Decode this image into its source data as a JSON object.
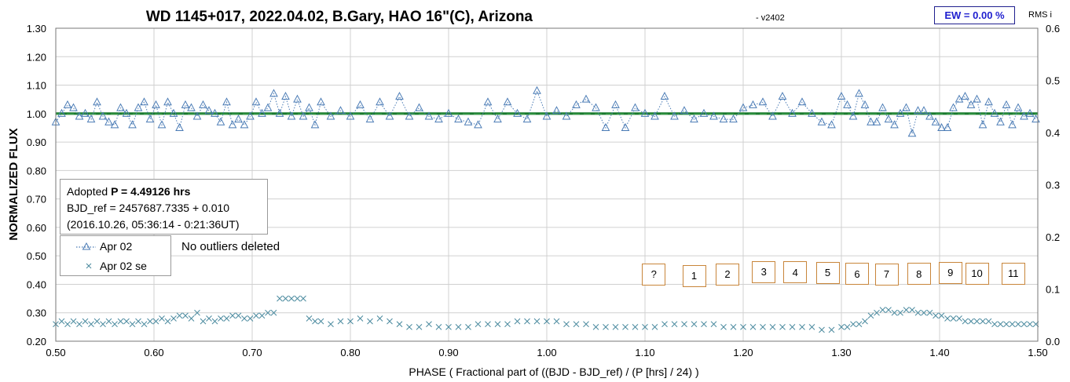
{
  "chart_data": {
    "type": "scatter",
    "title": "WD 1145+017, 2022.04.02, B.Gary, HAO 16\"(C), Arizona",
    "version": "-  v2402",
    "xlabel": "PHASE ( Fractional part of ((BJD - BJD_ref) / (P [hrs] / 24) )",
    "ylabel": "NORMALIZED FLUX",
    "y2label": "RMS i",
    "xlim": [
      0.5,
      1.5
    ],
    "ylim": [
      0.2,
      1.3
    ],
    "y2lim": [
      0.0,
      0.6
    ],
    "x_ticks": [
      "0.50",
      "0.60",
      "0.70",
      "0.80",
      "0.90",
      "1.00",
      "1.10",
      "1.20",
      "1.30",
      "1.40",
      "1.50"
    ],
    "y_ticks": [
      "0.20",
      "0.30",
      "0.40",
      "0.50",
      "0.60",
      "0.70",
      "0.80",
      "0.90",
      "1.00",
      "1.10",
      "1.20",
      "1.30"
    ],
    "y2_ticks": [
      "0.0",
      "0.1",
      "0.2",
      "0.3",
      "0.4",
      "0.5",
      "0.6"
    ],
    "grid": true,
    "reference_line": 1.0,
    "series": [
      {
        "name": "Apr 02",
        "marker": "triangle",
        "color": "#4a7bb5",
        "line": "dotted",
        "x": [
          0.5,
          0.506,
          0.512,
          0.518,
          0.524,
          0.53,
          0.536,
          0.542,
          0.548,
          0.554,
          0.56,
          0.566,
          0.572,
          0.578,
          0.584,
          0.59,
          0.596,
          0.602,
          0.608,
          0.614,
          0.62,
          0.626,
          0.632,
          0.638,
          0.644,
          0.65,
          0.656,
          0.662,
          0.668,
          0.674,
          0.68,
          0.686,
          0.692,
          0.698,
          0.704,
          0.71,
          0.716,
          0.722,
          0.728,
          0.734,
          0.74,
          0.746,
          0.752,
          0.758,
          0.764,
          0.77,
          0.78,
          0.79,
          0.8,
          0.81,
          0.82,
          0.83,
          0.84,
          0.85,
          0.86,
          0.87,
          0.88,
          0.89,
          0.9,
          0.91,
          0.92,
          0.93,
          0.94,
          0.95,
          0.96,
          0.97,
          0.98,
          0.99,
          1.0,
          1.01,
          1.02,
          1.03,
          1.04,
          1.05,
          1.06,
          1.07,
          1.08,
          1.09,
          1.1,
          1.11,
          1.12,
          1.13,
          1.14,
          1.15,
          1.16,
          1.17,
          1.18,
          1.19,
          1.2,
          1.21,
          1.22,
          1.23,
          1.24,
          1.25,
          1.26,
          1.27,
          1.28,
          1.29,
          1.3,
          1.306,
          1.312,
          1.318,
          1.324,
          1.33,
          1.336,
          1.342,
          1.348,
          1.354,
          1.36,
          1.366,
          1.372,
          1.378,
          1.384,
          1.39,
          1.396,
          1.402,
          1.408,
          1.414,
          1.42,
          1.426,
          1.432,
          1.438,
          1.444,
          1.45,
          1.456,
          1.462,
          1.468,
          1.474,
          1.48,
          1.486,
          1.492,
          1.498
        ],
        "y": [
          0.97,
          1.0,
          1.03,
          1.02,
          0.99,
          1.0,
          0.98,
          1.04,
          0.99,
          0.97,
          0.96,
          1.02,
          1.0,
          0.96,
          1.02,
          1.04,
          0.98,
          1.03,
          0.96,
          1.04,
          1.0,
          0.95,
          1.03,
          1.02,
          0.99,
          1.03,
          1.01,
          1.0,
          0.97,
          1.04,
          0.96,
          0.98,
          0.96,
          0.99,
          1.04,
          1.0,
          1.02,
          1.07,
          1.0,
          1.06,
          0.99,
          1.05,
          0.99,
          1.02,
          0.96,
          1.04,
          0.99,
          1.01,
          0.99,
          1.03,
          0.98,
          1.04,
          0.99,
          1.06,
          0.99,
          1.02,
          0.99,
          0.98,
          1.0,
          0.98,
          0.97,
          0.96,
          1.04,
          0.98,
          1.04,
          1.0,
          0.98,
          1.08,
          0.99,
          1.01,
          0.99,
          1.03,
          1.05,
          1.02,
          0.95,
          1.03,
          0.95,
          1.02,
          1.0,
          0.99,
          1.06,
          0.99,
          1.01,
          0.98,
          1.0,
          0.99,
          0.98,
          0.98,
          1.02,
          1.03,
          1.04,
          0.99,
          1.06,
          1.0,
          1.04,
          1.0,
          0.97,
          0.96,
          1.06,
          1.03,
          0.99,
          1.07,
          1.03,
          0.97,
          0.97,
          1.02,
          0.98,
          0.96,
          1.0,
          1.02,
          0.93,
          1.01,
          1.01,
          0.99,
          0.97,
          0.95,
          0.95,
          1.02,
          1.05,
          1.06,
          1.03,
          1.05,
          0.96,
          1.04,
          1.0,
          0.97,
          1.03,
          0.96,
          1.02,
          0.99,
          1.0,
          0.98
        ]
      },
      {
        "name": "Apr 02 se",
        "marker": "x",
        "color": "#4a8a9e",
        "line": "none",
        "x": [
          0.5,
          0.506,
          0.512,
          0.518,
          0.524,
          0.53,
          0.536,
          0.542,
          0.548,
          0.554,
          0.56,
          0.566,
          0.572,
          0.578,
          0.584,
          0.59,
          0.596,
          0.602,
          0.608,
          0.614,
          0.62,
          0.626,
          0.632,
          0.638,
          0.644,
          0.65,
          0.656,
          0.662,
          0.668,
          0.674,
          0.68,
          0.686,
          0.692,
          0.698,
          0.704,
          0.71,
          0.716,
          0.722,
          0.728,
          0.734,
          0.74,
          0.746,
          0.752,
          0.758,
          0.764,
          0.77,
          0.78,
          0.79,
          0.8,
          0.81,
          0.82,
          0.83,
          0.84,
          0.85,
          0.86,
          0.87,
          0.88,
          0.89,
          0.9,
          0.91,
          0.92,
          0.93,
          0.94,
          0.95,
          0.96,
          0.97,
          0.98,
          0.99,
          1.0,
          1.01,
          1.02,
          1.03,
          1.04,
          1.05,
          1.06,
          1.07,
          1.08,
          1.09,
          1.1,
          1.11,
          1.12,
          1.13,
          1.14,
          1.15,
          1.16,
          1.17,
          1.18,
          1.19,
          1.2,
          1.21,
          1.22,
          1.23,
          1.24,
          1.25,
          1.26,
          1.27,
          1.28,
          1.29,
          1.3,
          1.306,
          1.312,
          1.318,
          1.324,
          1.33,
          1.336,
          1.342,
          1.348,
          1.354,
          1.36,
          1.366,
          1.372,
          1.378,
          1.384,
          1.39,
          1.396,
          1.402,
          1.408,
          1.414,
          1.42,
          1.426,
          1.432,
          1.438,
          1.444,
          1.45,
          1.456,
          1.462,
          1.468,
          1.474,
          1.48,
          1.486,
          1.492,
          1.498
        ],
        "y": [
          0.26,
          0.27,
          0.26,
          0.27,
          0.26,
          0.27,
          0.26,
          0.27,
          0.26,
          0.27,
          0.26,
          0.27,
          0.27,
          0.26,
          0.27,
          0.26,
          0.27,
          0.27,
          0.28,
          0.27,
          0.28,
          0.29,
          0.29,
          0.28,
          0.3,
          0.27,
          0.28,
          0.27,
          0.28,
          0.28,
          0.29,
          0.29,
          0.28,
          0.28,
          0.29,
          0.29,
          0.3,
          0.3,
          0.35,
          0.35,
          0.35,
          0.35,
          0.35,
          0.28,
          0.27,
          0.27,
          0.26,
          0.27,
          0.27,
          0.28,
          0.27,
          0.28,
          0.27,
          0.26,
          0.25,
          0.25,
          0.26,
          0.25,
          0.25,
          0.25,
          0.25,
          0.26,
          0.26,
          0.26,
          0.26,
          0.27,
          0.27,
          0.27,
          0.27,
          0.27,
          0.26,
          0.26,
          0.26,
          0.25,
          0.25,
          0.25,
          0.25,
          0.25,
          0.25,
          0.25,
          0.26,
          0.26,
          0.26,
          0.26,
          0.26,
          0.26,
          0.25,
          0.25,
          0.25,
          0.25,
          0.25,
          0.25,
          0.25,
          0.25,
          0.25,
          0.25,
          0.24,
          0.24,
          0.25,
          0.25,
          0.26,
          0.26,
          0.27,
          0.29,
          0.3,
          0.31,
          0.31,
          0.3,
          0.3,
          0.31,
          0.31,
          0.3,
          0.3,
          0.3,
          0.29,
          0.29,
          0.28,
          0.28,
          0.28,
          0.27,
          0.27,
          0.27,
          0.27,
          0.27,
          0.26,
          0.26,
          0.26,
          0.26,
          0.26,
          0.26,
          0.26,
          0.26
        ]
      }
    ],
    "annotations": {
      "adopted_prefix": "Adopted ",
      "period": "P = 4.49126 hrs",
      "bjd_ref": "BJD_ref = 2457687.7335 + 0.010",
      "date_range": "(2016.10.26, 05:36:14 - 0:21:36UT)",
      "outliers_note": "No outliers deleted",
      "ew": "EW = 0.00 %",
      "fragment_markers": [
        {
          "label": "?",
          "x": 1.109,
          "y": 0.435
        },
        {
          "label": "1",
          "x": 1.15,
          "y": 0.43
        },
        {
          "label": "2",
          "x": 1.184,
          "y": 0.435
        },
        {
          "label": "3",
          "x": 1.221,
          "y": 0.443
        },
        {
          "label": "4",
          "x": 1.253,
          "y": 0.442
        },
        {
          "label": "5",
          "x": 1.286,
          "y": 0.44
        },
        {
          "label": "6",
          "x": 1.316,
          "y": 0.437
        },
        {
          "label": "7",
          "x": 1.346,
          "y": 0.435
        },
        {
          "label": "8",
          "x": 1.379,
          "y": 0.436
        },
        {
          "label": "9",
          "x": 1.411,
          "y": 0.44
        },
        {
          "label": "10",
          "x": 1.438,
          "y": 0.438
        },
        {
          "label": "11",
          "x": 1.475,
          "y": 0.438
        }
      ]
    }
  }
}
